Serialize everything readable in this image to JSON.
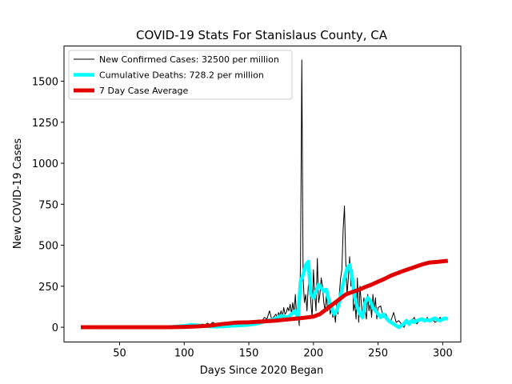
{
  "chart_data": {
    "type": "line",
    "title": "COVID-19 Stats For Stanislaus County, CA",
    "xlabel": "Days Since 2020 Began",
    "ylabel": "New COVID-19 Cases",
    "xlim": [
      7,
      314
    ],
    "ylim": [
      -90,
      1715
    ],
    "xticks": [
      50,
      100,
      150,
      200,
      250,
      300
    ],
    "yticks": [
      0,
      250,
      500,
      750,
      1000,
      1250,
      1500
    ],
    "grid": false,
    "legend_position": "upper-left",
    "series": [
      {
        "name": "New Confirmed Cases: 32500 per million",
        "color": "#000000",
        "width": 1,
        "x": [
          20,
          30,
          40,
          50,
          60,
          70,
          80,
          85,
          90,
          95,
          100,
          103,
          106,
          108,
          110,
          112,
          114,
          116,
          118,
          120,
          122,
          125,
          128,
          130,
          133,
          136,
          140,
          143,
          146,
          150,
          152,
          154,
          156,
          158,
          160,
          162,
          164,
          166,
          168,
          169,
          170,
          171,
          172,
          173,
          174,
          175,
          176,
          177,
          178,
          179,
          180,
          181,
          182,
          183,
          184,
          185,
          186,
          187,
          188,
          189,
          190,
          191,
          192,
          193,
          194,
          195,
          196,
          197,
          198,
          199,
          200,
          201,
          202,
          203,
          204,
          205,
          206,
          207,
          208,
          209,
          210,
          211,
          212,
          213,
          214,
          215,
          216,
          217,
          218,
          219,
          220,
          221,
          222,
          223,
          224,
          225,
          226,
          227,
          228,
          229,
          230,
          231,
          232,
          233,
          234,
          235,
          236,
          237,
          238,
          239,
          240,
          241,
          242,
          243,
          244,
          245,
          246,
          247,
          248,
          249,
          250,
          252,
          254,
          256,
          258,
          260,
          262,
          264,
          266,
          268,
          270,
          272,
          274,
          276,
          278,
          280,
          282,
          284,
          286,
          288,
          290,
          292,
          294,
          296,
          298,
          300,
          302,
          304
        ],
        "y": [
          0,
          0,
          0,
          0,
          0,
          0,
          0,
          1,
          2,
          3,
          5,
          8,
          10,
          6,
          15,
          10,
          20,
          12,
          25,
          15,
          30,
          18,
          22,
          20,
          25,
          18,
          28,
          22,
          20,
          25,
          35,
          30,
          40,
          45,
          35,
          60,
          50,
          100,
          40,
          60,
          70,
          80,
          50,
          90,
          70,
          100,
          60,
          120,
          80,
          90,
          120,
          100,
          140,
          80,
          150,
          90,
          200,
          60,
          100,
          10,
          400,
          1630,
          300,
          150,
          200,
          100,
          250,
          300,
          150,
          60,
          350,
          200,
          100,
          420,
          150,
          200,
          300,
          250,
          150,
          100,
          200,
          100,
          150,
          80,
          120,
          60,
          100,
          30,
          150,
          80,
          200,
          300,
          350,
          600,
          740,
          400,
          200,
          300,
          430,
          250,
          350,
          100,
          150,
          50,
          300,
          30,
          250,
          150,
          50,
          180,
          100,
          50,
          200,
          100,
          150,
          60,
          200,
          100,
          180,
          50,
          120,
          130,
          60,
          80,
          50,
          40,
          90,
          30,
          40,
          20,
          0,
          30,
          10,
          40,
          60,
          20,
          40,
          50,
          30,
          60,
          40,
          50,
          30,
          40,
          60,
          40,
          50,
          60
        ]
      },
      {
        "name": "Cumulative Deaths: 728.2 per million",
        "color": "#00ffff",
        "width": 4.5,
        "x": [
          20,
          40,
          60,
          80,
          90,
          95,
          100,
          105,
          110,
          115,
          120,
          125,
          130,
          135,
          140,
          145,
          150,
          155,
          160,
          165,
          170,
          175,
          180,
          183,
          186,
          188,
          190,
          192,
          194,
          196,
          198,
          200,
          202,
          204,
          206,
          208,
          210,
          212,
          214,
          216,
          218,
          220,
          222,
          224,
          226,
          228,
          230,
          232,
          234,
          236,
          238,
          240,
          242,
          244,
          246,
          248,
          250,
          252,
          254,
          256,
          258,
          260,
          262,
          264,
          266,
          268,
          270,
          272,
          274,
          276,
          278,
          280,
          282,
          284,
          286,
          288,
          290,
          292,
          294,
          296,
          298,
          300,
          302,
          304
        ],
        "y": [
          0,
          0,
          0,
          0,
          2,
          5,
          8,
          15,
          12,
          8,
          5,
          3,
          5,
          8,
          10,
          12,
          15,
          20,
          30,
          40,
          50,
          70,
          60,
          80,
          100,
          50,
          280,
          320,
          380,
          400,
          200,
          180,
          220,
          260,
          240,
          220,
          230,
          160,
          120,
          80,
          100,
          150,
          230,
          300,
          360,
          380,
          300,
          180,
          120,
          80,
          60,
          150,
          180,
          160,
          120,
          100,
          80,
          60,
          80,
          60,
          40,
          30,
          20,
          10,
          0,
          10,
          20,
          40,
          20,
          40,
          30,
          40,
          45,
          50,
          40,
          45,
          40,
          50,
          55,
          45,
          40,
          50,
          55,
          50
        ]
      },
      {
        "name": "7 Day Case Average",
        "color": "#e00000",
        "width": 5,
        "x": [
          20,
          60,
          90,
          100,
          110,
          120,
          130,
          140,
          150,
          160,
          170,
          180,
          190,
          200,
          205,
          210,
          215,
          220,
          225,
          230,
          235,
          240,
          245,
          250,
          255,
          260,
          265,
          270,
          275,
          280,
          285,
          290,
          295,
          300,
          304
        ],
        "y": [
          0,
          0,
          0,
          2,
          5,
          10,
          20,
          28,
          30,
          35,
          40,
          48,
          55,
          65,
          80,
          110,
          140,
          170,
          200,
          215,
          228,
          245,
          260,
          278,
          295,
          315,
          330,
          345,
          358,
          372,
          385,
          395,
          398,
          402,
          405
        ]
      }
    ]
  }
}
